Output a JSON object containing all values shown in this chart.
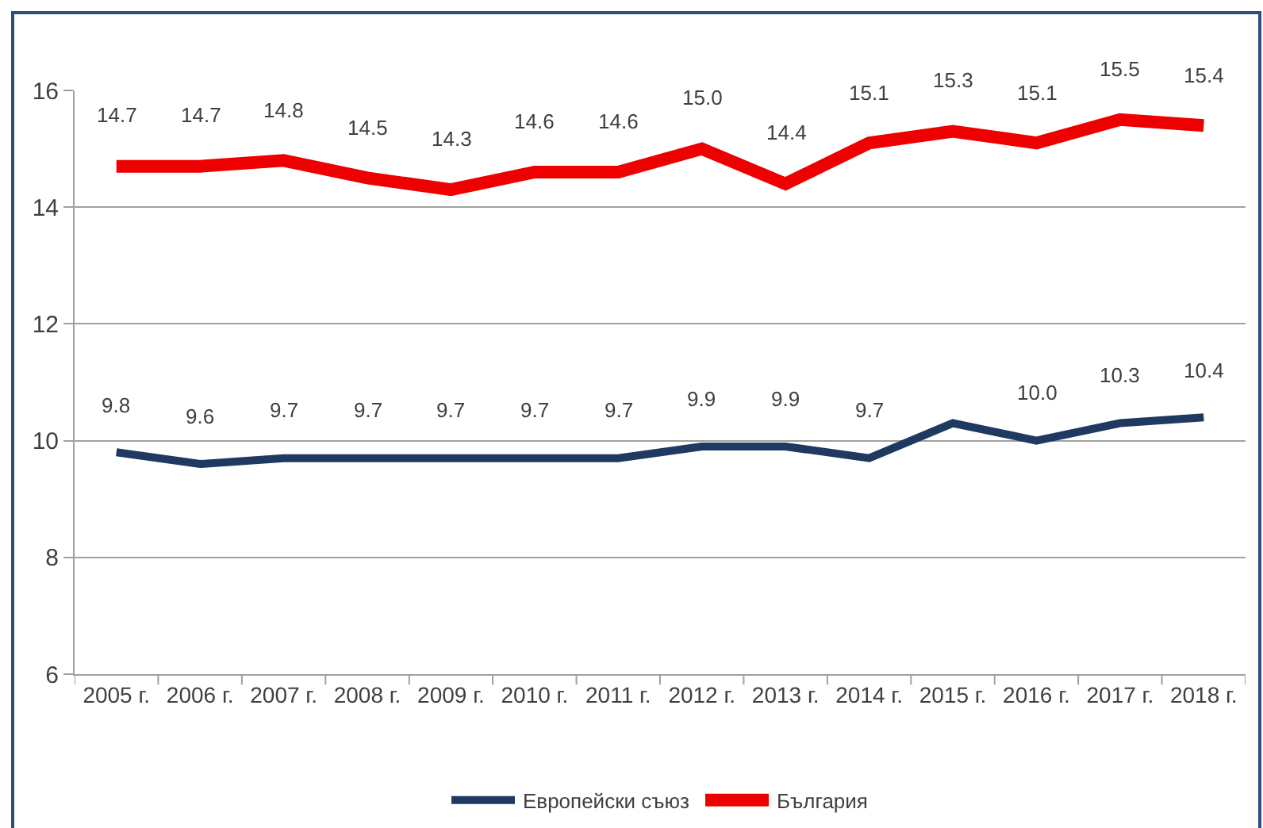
{
  "chart_data": {
    "type": "line",
    "categories": [
      "2005 г.",
      "2006 г.",
      "2007 г.",
      "2008 г.",
      "2009 г.",
      "2010 г.",
      "2011 г.",
      "2012 г.",
      "2013 г.",
      "2014 г.",
      "2015 г.",
      "2016 г.",
      "2017 г.",
      "2018 г."
    ],
    "series": [
      {
        "name": "Европейски съюз",
        "color": "#1f3a60",
        "values": [
          9.8,
          9.6,
          9.7,
          9.7,
          9.7,
          9.7,
          9.7,
          9.9,
          9.9,
          9.7,
          10.3,
          10.0,
          10.3,
          10.4
        ],
        "value_labels": [
          "9.8",
          "9.6",
          "9.7",
          "9.7",
          "9.7",
          "9.7",
          "9.7",
          "9.9",
          "9.9",
          "9.7",
          null,
          "10.0",
          "10.3",
          "10.4"
        ]
      },
      {
        "name": "България",
        "color": "#ee0000",
        "values": [
          14.7,
          14.7,
          14.8,
          14.5,
          14.3,
          14.6,
          14.6,
          15.0,
          14.4,
          15.1,
          15.3,
          15.1,
          15.5,
          15.4
        ],
        "value_labels": [
          "14.7",
          "14.7",
          "14.8",
          "14.5",
          "14.3",
          "14.6",
          "14.6",
          "15.0",
          "14.4",
          "15.1",
          "15.3",
          "15.1",
          "15.5",
          "15.4"
        ]
      }
    ],
    "ylim": [
      6,
      16
    ],
    "yticks": [
      6,
      8,
      10,
      12,
      14,
      16
    ],
    "grid": "y",
    "legend": "bottom"
  }
}
